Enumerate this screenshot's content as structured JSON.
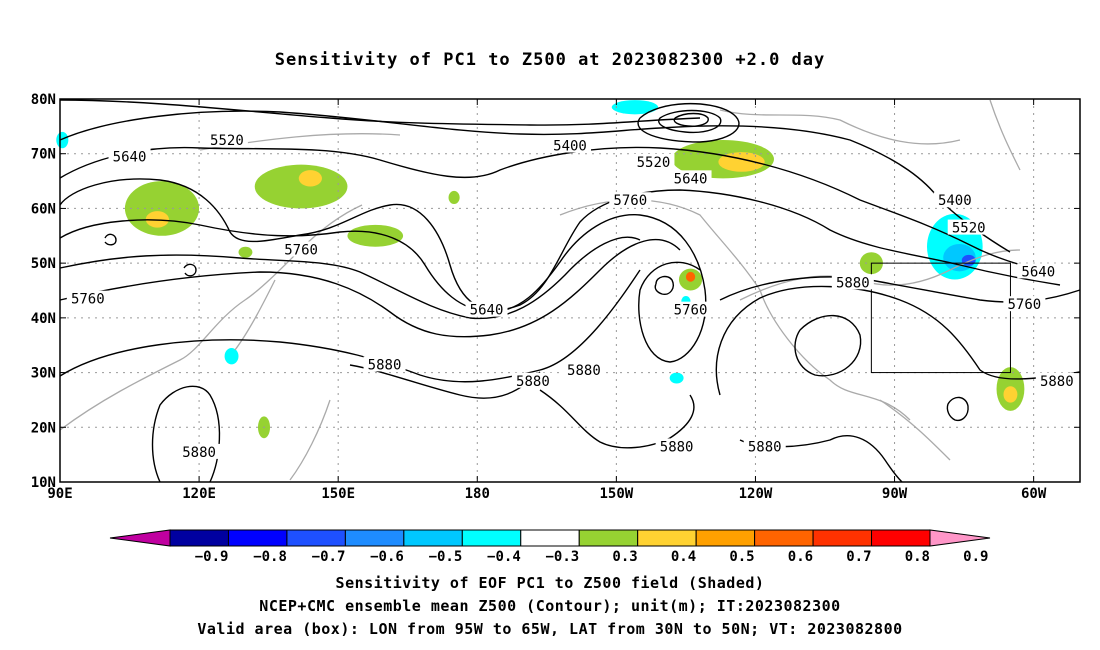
{
  "title": "Sensitivity of PC1 to Z500 at 2023082300 +2.0 day",
  "captions": {
    "line1": "Sensitivity of EOF PC1 to Z500 field (Shaded)",
    "line2": "NCEP+CMC ensemble mean Z500 (Contour); unit(m); IT:2023082300",
    "line3": "Valid area (box): LON from 95W to 65W, LAT from 30N to 50N; VT: 2023082800"
  },
  "map": {
    "lon_range": [
      90,
      310
    ],
    "lat_range": [
      10,
      80
    ],
    "lon_ticks": [
      {
        "lon": 90,
        "label": "90E"
      },
      {
        "lon": 120,
        "label": "120E"
      },
      {
        "lon": 150,
        "label": "150E"
      },
      {
        "lon": 180,
        "label": "180"
      },
      {
        "lon": 210,
        "label": "150W"
      },
      {
        "lon": 240,
        "label": "120W"
      },
      {
        "lon": 270,
        "label": "90W"
      },
      {
        "lon": 300,
        "label": "60W"
      }
    ],
    "lat_ticks": [
      {
        "lat": 80,
        "label": "80N"
      },
      {
        "lat": 70,
        "label": "70N"
      },
      {
        "lat": 60,
        "label": "60N"
      },
      {
        "lat": 50,
        "label": "50N"
      },
      {
        "lat": 40,
        "label": "40N"
      },
      {
        "lat": 30,
        "label": "30N"
      },
      {
        "lat": 20,
        "label": "20N"
      },
      {
        "lat": 10,
        "label": "10N"
      }
    ],
    "valid_box": {
      "lon_min": 265,
      "lon_max": 295,
      "lat_min": 30,
      "lat_max": 50
    },
    "contour_labels": [
      {
        "text": "5520",
        "lon": 126,
        "lat": 72.5
      },
      {
        "text": "5400",
        "lon": 200,
        "lat": 71.5
      },
      {
        "text": "5640",
        "lon": 105,
        "lat": 69.5
      },
      {
        "text": "5520",
        "lon": 218,
        "lat": 68.5
      },
      {
        "text": "5640",
        "lon": 226,
        "lat": 65.5
      },
      {
        "text": "5760",
        "lon": 213,
        "lat": 61.5
      },
      {
        "text": "5400",
        "lon": 283,
        "lat": 61.5
      },
      {
        "text": "5520",
        "lon": 286,
        "lat": 56.5
      },
      {
        "text": "5760",
        "lon": 142,
        "lat": 52.5
      },
      {
        "text": "5640",
        "lon": 301,
        "lat": 48.5
      },
      {
        "text": "5880",
        "lon": 261,
        "lat": 46.5
      },
      {
        "text": "5760",
        "lon": 96,
        "lat": 43.5
      },
      {
        "text": "5760",
        "lon": 298,
        "lat": 42.5
      },
      {
        "text": "5640",
        "lon": 182,
        "lat": 41.5
      },
      {
        "text": "5760",
        "lon": 226,
        "lat": 41.5
      },
      {
        "text": "5880",
        "lon": 160,
        "lat": 31.5
      },
      {
        "text": "5880",
        "lon": 203,
        "lat": 30.5
      },
      {
        "text": "5880",
        "lon": 192,
        "lat": 28.5
      },
      {
        "text": "5880",
        "lon": 305,
        "lat": 28.5
      },
      {
        "text": "5880",
        "lon": 223,
        "lat": 16.5
      },
      {
        "text": "5880",
        "lon": 242,
        "lat": 16.5
      },
      {
        "text": "5880",
        "lon": 120,
        "lat": 15.5
      }
    ]
  },
  "colorbar": {
    "colors": [
      "#c000a0",
      "#0000a0",
      "#0000ff",
      "#1e50ff",
      "#1e8cff",
      "#00c8ff",
      "#00ffff",
      "#ffffff",
      "#96d232",
      "#ffd232",
      "#ffa000",
      "#ff6400",
      "#ff3200",
      "#ff0000",
      "#ff96c8"
    ],
    "labels": [
      "−0.9",
      "−0.8",
      "−0.7",
      "−0.6",
      "−0.5",
      "−0.4",
      "−0.3",
      "0.3",
      "0.4",
      "0.5",
      "0.6",
      "0.7",
      "0.8",
      "0.9"
    ]
  },
  "shading": [
    {
      "color": "#96d232",
      "lon": 112,
      "lat": 60,
      "rlon": 8,
      "rlat": 5
    },
    {
      "color": "#ffd232",
      "lon": 111,
      "lat": 58,
      "rlon": 2.5,
      "rlat": 1.5
    },
    {
      "color": "#96d232",
      "lon": 142,
      "lat": 64,
      "rlon": 10,
      "rlat": 4
    },
    {
      "color": "#ffd232",
      "lon": 144,
      "lat": 65.5,
      "rlon": 2.5,
      "rlat": 1.5
    },
    {
      "color": "#96d232",
      "lon": 158,
      "lat": 55,
      "rlon": 6,
      "rlat": 2
    },
    {
      "color": "#96d232",
      "lon": 233,
      "lat": 69,
      "rlon": 11,
      "rlat": 3.5
    },
    {
      "color": "#ffd232",
      "lon": 237,
      "lat": 68.5,
      "rlon": 5,
      "rlat": 1.8
    },
    {
      "color": "#00ffff",
      "lon": 214,
      "lat": 78.5,
      "rlon": 5,
      "rlat": 1.3
    },
    {
      "color": "#96d232",
      "lon": 265,
      "lat": 50,
      "rlon": 2.5,
      "rlat": 2
    },
    {
      "color": "#96d232",
      "lon": 226,
      "lat": 47,
      "rlon": 2.5,
      "rlat": 2
    },
    {
      "color": "#ff6400",
      "lon": 226,
      "lat": 47.5,
      "rlon": 1,
      "rlat": 0.9
    },
    {
      "color": "#00ffff",
      "lon": 283,
      "lat": 53,
      "rlon": 6,
      "rlat": 6
    },
    {
      "color": "#00c8ff",
      "lon": 284,
      "lat": 51,
      "rlon": 3.5,
      "rlat": 2.5
    },
    {
      "color": "#1e50ff",
      "lon": 286,
      "lat": 50.5,
      "rlon": 1.5,
      "rlat": 1
    },
    {
      "color": "#96d232",
      "lon": 295,
      "lat": 27,
      "rlon": 3,
      "rlat": 4
    },
    {
      "color": "#ffd232",
      "lon": 295,
      "lat": 26,
      "rlon": 1.5,
      "rlat": 1.5
    },
    {
      "color": "#96d232",
      "lon": 175,
      "lat": 62,
      "rlon": 1.2,
      "rlat": 1.2
    },
    {
      "color": "#96d232",
      "lon": 134,
      "lat": 20,
      "rlon": 1.3,
      "rlat": 2
    },
    {
      "color": "#00ffff",
      "lon": 223,
      "lat": 29,
      "rlon": 1.5,
      "rlat": 1
    },
    {
      "color": "#00ffff",
      "lon": 225,
      "lat": 43,
      "rlon": 1,
      "rlat": 1
    },
    {
      "color": "#00ffff",
      "lon": 90.5,
      "lat": 72.5,
      "rlon": 1.3,
      "rlat": 1.5
    },
    {
      "color": "#00ffff",
      "lon": 127,
      "lat": 33,
      "rlon": 1.5,
      "rlat": 1.5
    },
    {
      "color": "#96d232",
      "lon": 130,
      "lat": 52,
      "rlon": 1.5,
      "rlat": 1
    }
  ]
}
